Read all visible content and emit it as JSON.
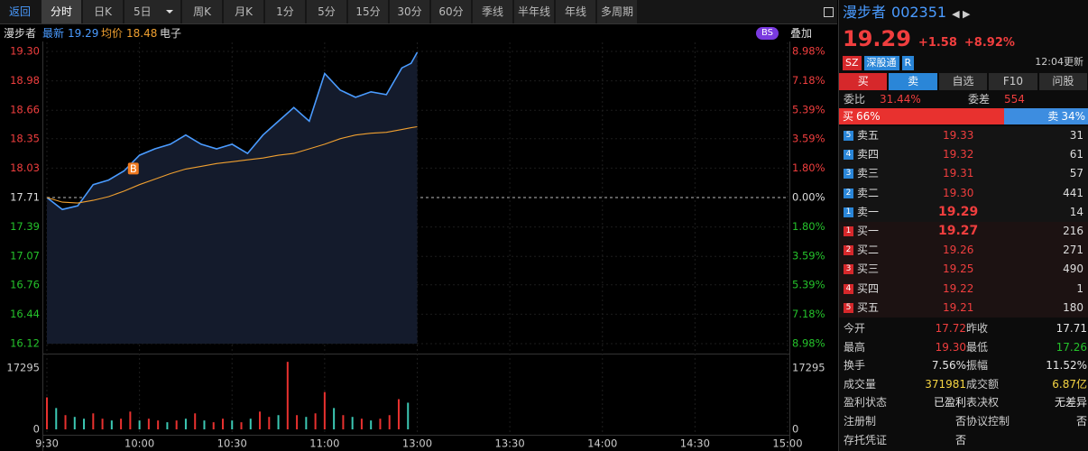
{
  "toolbar": {
    "back": "返回",
    "tabs": [
      "分时",
      "日K",
      "5日",
      "周K",
      "月K",
      "1分",
      "5分",
      "15分",
      "30分",
      "60分",
      "季线",
      "半年线",
      "年线",
      "多周期"
    ]
  },
  "info_bar": {
    "name": "漫步者",
    "latest_value": "19.29",
    "avg_value": "18.48",
    "sector": "电子",
    "bs": "BS",
    "overlay": "叠加"
  },
  "chart_data": [
    {
      "type": "line",
      "x": [
        0,
        5,
        10,
        15,
        20,
        25,
        30,
        35,
        40,
        45,
        50,
        55,
        60,
        65,
        70,
        75,
        80,
        85,
        90,
        95,
        100,
        105,
        110,
        115,
        118,
        120
      ],
      "series": [
        {
          "name": "最新",
          "color": "#4a9bff",
          "values": [
            17.71,
            17.58,
            17.62,
            17.85,
            17.9,
            18.0,
            18.17,
            18.24,
            18.29,
            18.39,
            18.29,
            18.24,
            18.29,
            18.19,
            18.39,
            18.54,
            18.69,
            18.54,
            19.06,
            18.88,
            18.8,
            18.86,
            18.83,
            19.12,
            19.17,
            19.29
          ]
        },
        {
          "name": "均价",
          "color": "#f0a030",
          "values": [
            17.71,
            17.66,
            17.65,
            17.68,
            17.72,
            17.78,
            17.85,
            17.91,
            17.97,
            18.02,
            18.05,
            18.08,
            18.1,
            18.12,
            18.14,
            18.17,
            18.19,
            18.24,
            18.29,
            18.35,
            18.39,
            18.41,
            18.42,
            18.45,
            18.47,
            18.48
          ]
        }
      ],
      "markers": [
        {
          "label": "B",
          "x": 28,
          "y": 18.03
        }
      ],
      "xlim": [
        0,
        240
      ],
      "xticks": [
        {
          "value": 0,
          "label": "9:30"
        },
        {
          "value": 30,
          "label": "10:00"
        },
        {
          "value": 60,
          "label": "10:30"
        },
        {
          "value": 90,
          "label": "11:00"
        },
        {
          "value": 120,
          "label": "13:00"
        },
        {
          "value": 150,
          "label": "13:30"
        },
        {
          "value": 180,
          "label": "14:00"
        },
        {
          "value": 210,
          "label": "14:30"
        },
        {
          "value": 240,
          "label": "15:00"
        }
      ],
      "ylim": [
        16.12,
        19.3
      ],
      "yticks": [
        {
          "value": 19.3,
          "label": "19.30"
        },
        18.98,
        18.66,
        18.35,
        18.03,
        17.71,
        17.39,
        17.07,
        16.76,
        16.44,
        16.12
      ],
      "y2lim": [
        -8.98,
        8.98
      ],
      "y2ticks": [
        {
          "value": 8.98,
          "label": "8.98%"
        },
        {
          "value": 7.18,
          "label": "7.18%"
        },
        {
          "value": 5.39,
          "label": "5.39%"
        },
        {
          "value": 3.59,
          "label": "3.59%"
        },
        {
          "value": 1.8,
          "label": "1.80%"
        },
        {
          "value": 0,
          "label": "0.00%"
        },
        {
          "value": -1.8,
          "label": "1.80%"
        },
        {
          "value": -3.59,
          "label": "3.59%"
        },
        {
          "value": -5.39,
          "label": "5.39%"
        },
        {
          "value": -7.18,
          "label": "7.18%"
        },
        {
          "value": -8.98,
          "label": "8.98%"
        }
      ],
      "grid": true
    },
    {
      "type": "bar",
      "x": [
        0,
        3,
        6,
        9,
        12,
        15,
        18,
        21,
        24,
        27,
        30,
        33,
        36,
        39,
        42,
        45,
        48,
        51,
        54,
        57,
        60,
        63,
        66,
        69,
        72,
        75,
        78,
        81,
        84,
        87,
        90,
        93,
        96,
        99,
        102,
        105,
        108,
        111,
        114,
        117
      ],
      "values": [
        9000,
        6000,
        4000,
        3500,
        3000,
        4500,
        3000,
        2500,
        3000,
        5000,
        2500,
        3000,
        2500,
        2000,
        2500,
        3000,
        4500,
        2500,
        2000,
        3000,
        2500,
        2000,
        3000,
        5000,
        3500,
        4000,
        19000,
        4000,
        3500,
        4500,
        10500,
        6000,
        4000,
        3500,
        3000,
        2500,
        3000,
        4000,
        8500,
        7500
      ],
      "colors": [
        "#e8312f",
        "#3cc8b4",
        "#e8312f",
        "#3cc8b4",
        "#3cc8b4",
        "#e8312f",
        "#e8312f",
        "#3cc8b4",
        "#e8312f",
        "#e8312f",
        "#3cc8b4",
        "#e8312f",
        "#e8312f",
        "#3cc8b4",
        "#e8312f",
        "#3cc8b4",
        "#e8312f",
        "#3cc8b4",
        "#e8312f",
        "#e8312f",
        "#3cc8b4",
        "#e8312f",
        "#3cc8b4",
        "#e8312f",
        "#e8312f",
        "#3cc8b4",
        "#e8312f",
        "#e8312f",
        "#3cc8b4",
        "#e8312f",
        "#e8312f",
        "#3cc8b4",
        "#e8312f",
        "#3cc8b4",
        "#e8312f",
        "#3cc8b4",
        "#e8312f",
        "#e8312f",
        "#e8312f",
        "#3cc8b4"
      ],
      "xlim": [
        0,
        240
      ],
      "ylim": [
        0,
        19800
      ],
      "yticks": [
        0,
        17295
      ],
      "y2lim": [
        0,
        19800
      ],
      "y2ticks": [
        0,
        17295
      ]
    }
  ],
  "quote": {
    "name": "漫步者",
    "code": "002351",
    "price": "19.29",
    "change": "+1.58",
    "change_pct": "+8.92%",
    "tags": [
      "SZ",
      "深股通",
      "R"
    ],
    "update_time": "12:04更新",
    "buttons": [
      "买",
      "卖",
      "自选",
      "F10",
      "问股"
    ],
    "wei_bi_label": "委比",
    "wei_bi": "31.44%",
    "wei_cha_label": "委差",
    "wei_cha": "554",
    "ratio": [
      {
        "label": "买",
        "value": 66,
        "value_label": "66%",
        "color": "#e8312f"
      },
      {
        "label": "卖",
        "value": 34,
        "value_label": "34%",
        "color": "#3d8de0"
      }
    ],
    "asks": [
      {
        "index": "5",
        "label": "卖五",
        "price": "19.33",
        "volume": "31"
      },
      {
        "index": "4",
        "label": "卖四",
        "price": "19.32",
        "volume": "61"
      },
      {
        "index": "3",
        "label": "卖三",
        "price": "19.31",
        "volume": "57"
      },
      {
        "index": "2",
        "label": "卖二",
        "price": "19.30",
        "volume": "441"
      },
      {
        "index": "1",
        "label": "卖一",
        "price": "19.29",
        "volume": "14"
      }
    ],
    "bids": [
      {
        "index": "1",
        "label": "买一",
        "price": "19.27",
        "volume": "216"
      },
      {
        "index": "2",
        "label": "买二",
        "price": "19.26",
        "volume": "271"
      },
      {
        "index": "3",
        "label": "买三",
        "price": "19.25",
        "volume": "490"
      },
      {
        "index": "4",
        "label": "买四",
        "price": "19.22",
        "volume": "1"
      },
      {
        "index": "5",
        "label": "买五",
        "price": "19.21",
        "volume": "180"
      }
    ],
    "stats": [
      {
        "label": "今开",
        "value": "17.72",
        "color": "#f03e3e"
      },
      {
        "label": "昨收",
        "value": "17.71",
        "color": "#e6e6e6"
      },
      {
        "label": "最高",
        "value": "19.30",
        "color": "#f03e3e"
      },
      {
        "label": "最低",
        "value": "17.26",
        "color": "#25c22b"
      },
      {
        "label": "换手",
        "value": "7.56%",
        "color": "#e6e6e6"
      },
      {
        "label": "振幅",
        "value": "11.52%",
        "color": "#e6e6e6"
      },
      {
        "label": "成交量",
        "value": "371981",
        "color": "#f5d442"
      },
      {
        "label": "成交额",
        "value": "6.87亿",
        "color": "#f5d442"
      },
      {
        "label": "盈利状态",
        "value": "已盈利",
        "color": "#e6e6e6"
      },
      {
        "label": "表决权",
        "value": "无差异",
        "color": "#e6e6e6"
      },
      {
        "label": "注册制",
        "value": "否",
        "color": "#e6e6e6"
      },
      {
        "label": "协议控制",
        "value": "否",
        "color": "#e6e6e6"
      },
      {
        "label": "存托凭证",
        "value": "否",
        "color": "#e6e6e6"
      }
    ]
  }
}
